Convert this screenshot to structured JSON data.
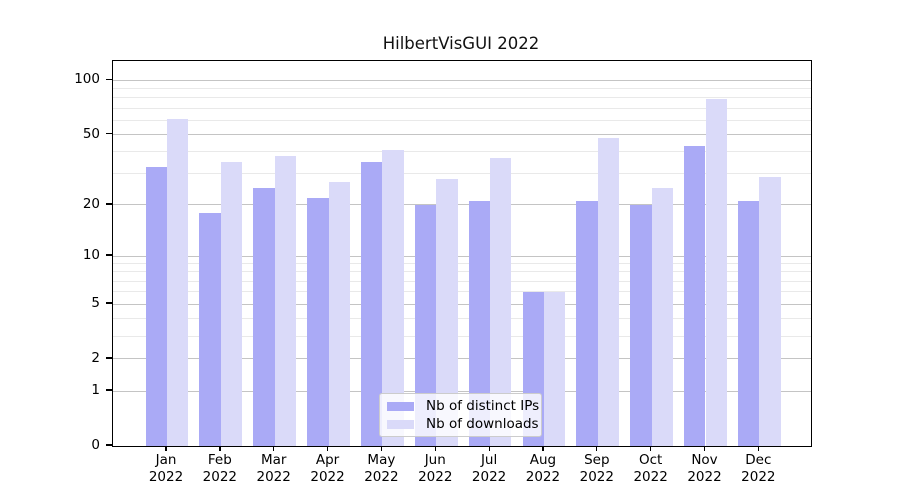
{
  "chart_data": {
    "type": "bar",
    "title": "HilbertVisGUI 2022",
    "categories": [
      "Jan",
      "Feb",
      "Mar",
      "Apr",
      "May",
      "Jun",
      "Jul",
      "Aug",
      "Sep",
      "Oct",
      "Nov",
      "Dec"
    ],
    "category_year": "2022",
    "series": [
      {
        "key": "ips",
        "name": "Nb of distinct IPs",
        "color": "#aaaaf6",
        "values": [
          33,
          18,
          25,
          22,
          35,
          20,
          21,
          6,
          21,
          20,
          43,
          21
        ]
      },
      {
        "key": "downloads",
        "name": "Nb of downloads",
        "color": "#dadaf9",
        "values": [
          61,
          35,
          38,
          27,
          41,
          28,
          37,
          6,
          48,
          25,
          79,
          29
        ]
      }
    ],
    "xlabel": "",
    "ylabel": "",
    "yscale": "log1p",
    "ylim": [
      0,
      128
    ],
    "y_ticks_major": [
      0,
      1,
      2,
      5,
      10,
      20,
      50,
      100
    ],
    "y_ticks_minor": [
      3,
      4,
      6,
      7,
      8,
      9,
      30,
      40,
      60,
      70,
      80,
      90
    ],
    "grid": "on",
    "legend_position": "lower center",
    "colors": {
      "grid_major": "#c4c4c4",
      "grid_minor": "#e9e9e9",
      "spine": "#000000",
      "background": "#ffffff"
    }
  }
}
